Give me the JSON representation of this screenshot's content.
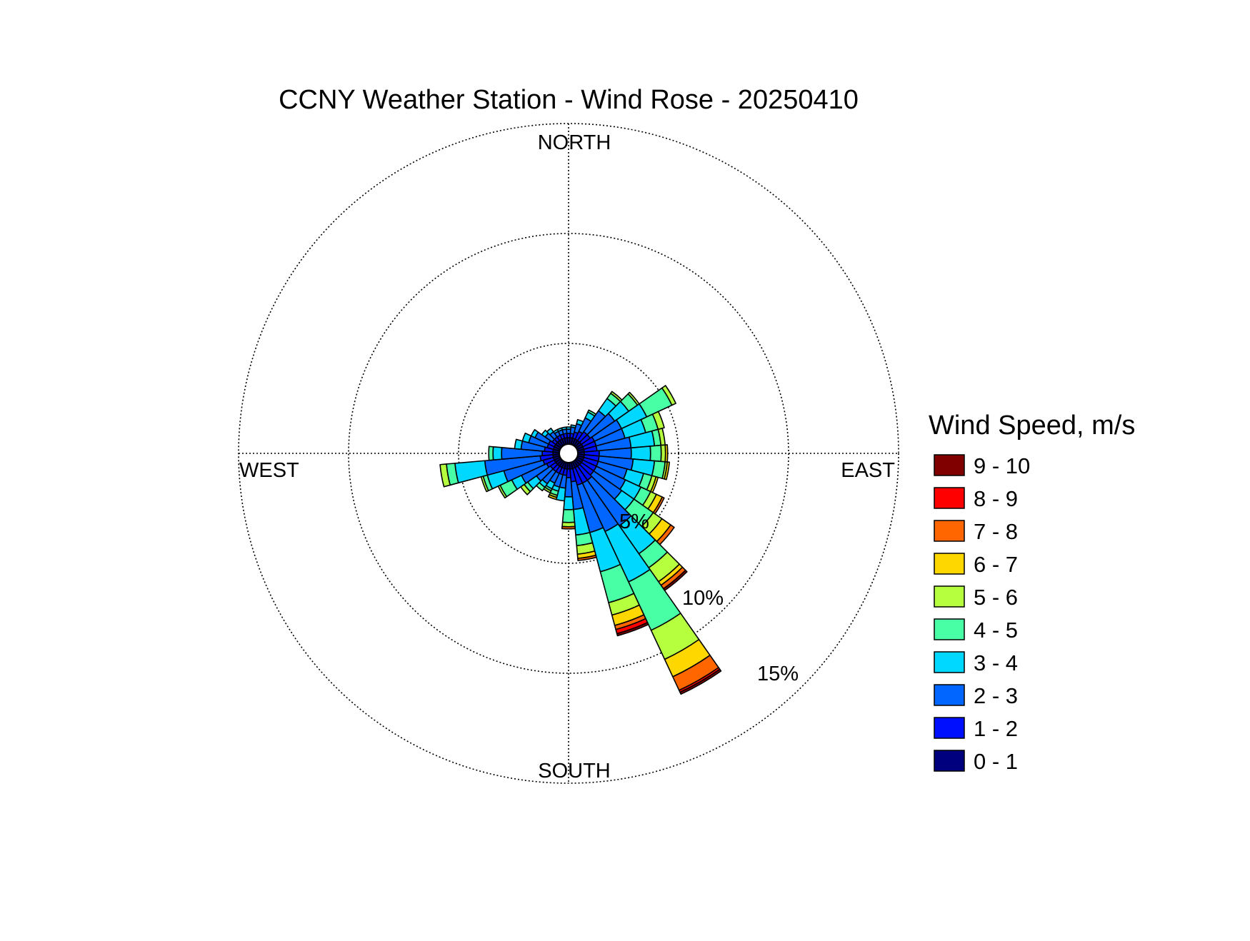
{
  "chart_data": {
    "type": "wind_rose",
    "title": "CCNY Weather Station - Wind Rose - 20250410",
    "directions": {
      "north": "NORTH",
      "south": "SOUTH",
      "east": "EAST",
      "west": "WEST"
    },
    "rings": [
      {
        "value": 5,
        "label": "5%"
      },
      {
        "value": 10,
        "label": "10%"
      },
      {
        "value": 15,
        "label": "15%"
      }
    ],
    "r_max_percent": 15,
    "legend": {
      "title": "Wind Speed, m/s",
      "bins": [
        {
          "label": "9 - 10",
          "color": "#800000"
        },
        {
          "label": "8 - 9",
          "color": "#ff0000"
        },
        {
          "label": "7 - 8",
          "color": "#ff6600"
        },
        {
          "label": "6 - 7",
          "color": "#ffd700"
        },
        {
          "label": "5 - 6",
          "color": "#b5ff3f"
        },
        {
          "label": "4 - 5",
          "color": "#48ffa6"
        },
        {
          "label": "3 - 4",
          "color": "#00d8ff"
        },
        {
          "label": "2 - 3",
          "color": "#0066ff"
        },
        {
          "label": "1 - 2",
          "color": "#0010ff"
        },
        {
          "label": "0 - 1",
          "color": "#00007f"
        }
      ]
    },
    "sector_width_deg": 10,
    "bin_order": [
      "0 - 1",
      "1 - 2",
      "2 - 3",
      "3 - 4",
      "4 - 5",
      "5 - 6",
      "6 - 7",
      "7 - 8",
      "8 - 9",
      "9 - 10"
    ],
    "sectors": [
      {
        "direction_deg": 0,
        "cumulative_percent": [
          0.3,
          0.5,
          0.7,
          0.8,
          0.8,
          0.8,
          0.8,
          0.8,
          0.8,
          0.8
        ]
      },
      {
        "direction_deg": 10,
        "cumulative_percent": [
          0.3,
          0.5,
          0.8,
          0.9,
          0.9,
          0.9,
          0.9,
          0.9,
          0.9,
          0.9
        ]
      },
      {
        "direction_deg": 20,
        "cumulative_percent": [
          0.3,
          0.6,
          1.0,
          1.2,
          1.2,
          1.2,
          1.2,
          1.2,
          1.2,
          1.2
        ]
      },
      {
        "direction_deg": 30,
        "cumulative_percent": [
          0.3,
          0.7,
          1.4,
          1.7,
          1.8,
          1.8,
          1.8,
          1.8,
          1.8,
          1.8
        ]
      },
      {
        "direction_deg": 40,
        "cumulative_percent": [
          0.3,
          0.8,
          2.0,
          2.7,
          3.0,
          3.1,
          3.1,
          3.1,
          3.1,
          3.1
        ]
      },
      {
        "direction_deg": 50,
        "cumulative_percent": [
          0.3,
          0.8,
          2.2,
          3.0,
          3.5,
          3.6,
          3.6,
          3.6,
          3.6,
          3.6
        ]
      },
      {
        "direction_deg": 60,
        "cumulative_percent": [
          0.3,
          0.9,
          2.3,
          3.6,
          4.9,
          5.1,
          5.1,
          5.1,
          5.1,
          5.1
        ]
      },
      {
        "direction_deg": 70,
        "cumulative_percent": [
          0.3,
          0.9,
          2.3,
          3.3,
          3.9,
          4.2,
          4.2,
          4.2,
          4.2,
          4.2
        ]
      },
      {
        "direction_deg": 80,
        "cumulative_percent": [
          0.3,
          0.9,
          2.5,
          3.6,
          3.9,
          4.1,
          4.1,
          4.1,
          4.1,
          4.1
        ]
      },
      {
        "direction_deg": 90,
        "cumulative_percent": [
          0.3,
          1.0,
          2.5,
          3.4,
          3.9,
          4.1,
          4.2,
          4.2,
          4.2,
          4.2
        ]
      },
      {
        "direction_deg": 100,
        "cumulative_percent": [
          0.3,
          1.0,
          2.6,
          3.6,
          4.1,
          4.2,
          4.3,
          4.3,
          4.3,
          4.3
        ]
      },
      {
        "direction_deg": 110,
        "cumulative_percent": [
          0.3,
          1.0,
          2.4,
          3.2,
          3.6,
          3.8,
          3.9,
          3.9,
          3.9,
          3.9
        ]
      },
      {
        "direction_deg": 120,
        "cumulative_percent": [
          0.3,
          1.0,
          2.5,
          3.3,
          3.8,
          4.1,
          4.4,
          4.5,
          4.5,
          4.5
        ]
      },
      {
        "direction_deg": 130,
        "cumulative_percent": [
          0.3,
          1.0,
          2.6,
          3.3,
          4.4,
          4.9,
          5.4,
          5.6,
          5.6,
          5.6
        ]
      },
      {
        "direction_deg": 140,
        "cumulative_percent": [
          0.3,
          1.1,
          3.7,
          5.3,
          6.1,
          6.9,
          7.1,
          7.3,
          7.3,
          7.4
        ]
      },
      {
        "direction_deg": 150,
        "cumulative_percent": [
          0.3,
          1.1,
          3.6,
          6.2,
          8.7,
          10.2,
          11.1,
          11.8,
          11.9,
          12.0
        ]
      },
      {
        "direction_deg": 160,
        "cumulative_percent": [
          0.3,
          1.1,
          3.4,
          5.3,
          6.8,
          7.4,
          7.9,
          8.1,
          8.3,
          8.4
        ]
      },
      {
        "direction_deg": 170,
        "cumulative_percent": [
          0.3,
          0.9,
          2.2,
          3.4,
          3.9,
          4.3,
          4.5,
          4.6,
          4.6,
          4.6
        ]
      },
      {
        "direction_deg": 180,
        "cumulative_percent": [
          0.3,
          0.7,
          1.6,
          2.2,
          2.8,
          3.0,
          3.0,
          3.1,
          3.1,
          3.1
        ]
      },
      {
        "direction_deg": 190,
        "cumulative_percent": [
          0.3,
          0.6,
          1.2,
          1.8,
          1.8,
          1.8,
          1.8,
          1.8,
          1.8,
          1.8
        ]
      },
      {
        "direction_deg": 200,
        "cumulative_percent": [
          0.3,
          0.6,
          1.2,
          1.4,
          1.6,
          1.7,
          1.8,
          1.8,
          1.8,
          1.8
        ]
      },
      {
        "direction_deg": 210,
        "cumulative_percent": [
          0.3,
          0.6,
          1.1,
          1.4,
          1.5,
          1.6,
          1.6,
          1.6,
          1.6,
          1.6
        ]
      },
      {
        "direction_deg": 220,
        "cumulative_percent": [
          0.3,
          0.6,
          1.3,
          1.5,
          1.7,
          1.7,
          1.7,
          1.7,
          1.7,
          1.7
        ]
      },
      {
        "direction_deg": 230,
        "cumulative_percent": [
          0.3,
          0.6,
          1.4,
          1.9,
          2.1,
          2.3,
          2.3,
          2.3,
          2.3,
          2.3
        ]
      },
      {
        "direction_deg": 240,
        "cumulative_percent": [
          0.3,
          0.7,
          2.0,
          2.5,
          3.1,
          3.2,
          3.2,
          3.2,
          3.2,
          3.2
        ]
      },
      {
        "direction_deg": 250,
        "cumulative_percent": [
          0.3,
          0.8,
          2.7,
          3.5,
          3.7,
          3.8,
          3.8,
          3.8,
          3.8,
          3.8
        ]
      },
      {
        "direction_deg": 260,
        "cumulative_percent": [
          0.3,
          0.9,
          3.5,
          4.9,
          5.3,
          5.6,
          5.6,
          5.6,
          5.6,
          5.6
        ]
      },
      {
        "direction_deg": 270,
        "cumulative_percent": [
          0.3,
          0.8,
          2.7,
          3.1,
          3.3,
          3.3,
          3.3,
          3.3,
          3.3,
          3.3
        ]
      },
      {
        "direction_deg": 280,
        "cumulative_percent": [
          0.3,
          0.7,
          1.8,
          2.1,
          2.1,
          2.1,
          2.1,
          2.1,
          2.1,
          2.1
        ]
      },
      {
        "direction_deg": 290,
        "cumulative_percent": [
          0.3,
          0.6,
          1.5,
          1.8,
          1.8,
          1.8,
          1.8,
          1.8,
          1.8,
          1.8
        ]
      },
      {
        "direction_deg": 300,
        "cumulative_percent": [
          0.3,
          0.6,
          1.3,
          1.5,
          1.5,
          1.5,
          1.5,
          1.5,
          1.5,
          1.5
        ]
      },
      {
        "direction_deg": 310,
        "cumulative_percent": [
          0.3,
          0.5,
          0.9,
          1.1,
          1.1,
          1.1,
          1.1,
          1.1,
          1.1,
          1.1
        ]
      },
      {
        "direction_deg": 320,
        "cumulative_percent": [
          0.3,
          0.5,
          0.8,
          1.0,
          1.0,
          1.0,
          1.0,
          1.0,
          1.0,
          1.0
        ]
      },
      {
        "direction_deg": 330,
        "cumulative_percent": [
          0.3,
          0.5,
          0.7,
          0.8,
          0.8,
          0.8,
          0.8,
          0.8,
          0.8,
          0.8
        ]
      },
      {
        "direction_deg": 340,
        "cumulative_percent": [
          0.3,
          0.5,
          0.7,
          0.8,
          0.8,
          0.8,
          0.8,
          0.8,
          0.8,
          0.8
        ]
      },
      {
        "direction_deg": 350,
        "cumulative_percent": [
          0.3,
          0.5,
          0.7,
          0.8,
          0.8,
          0.8,
          0.8,
          0.8,
          0.8,
          0.8
        ]
      }
    ]
  }
}
